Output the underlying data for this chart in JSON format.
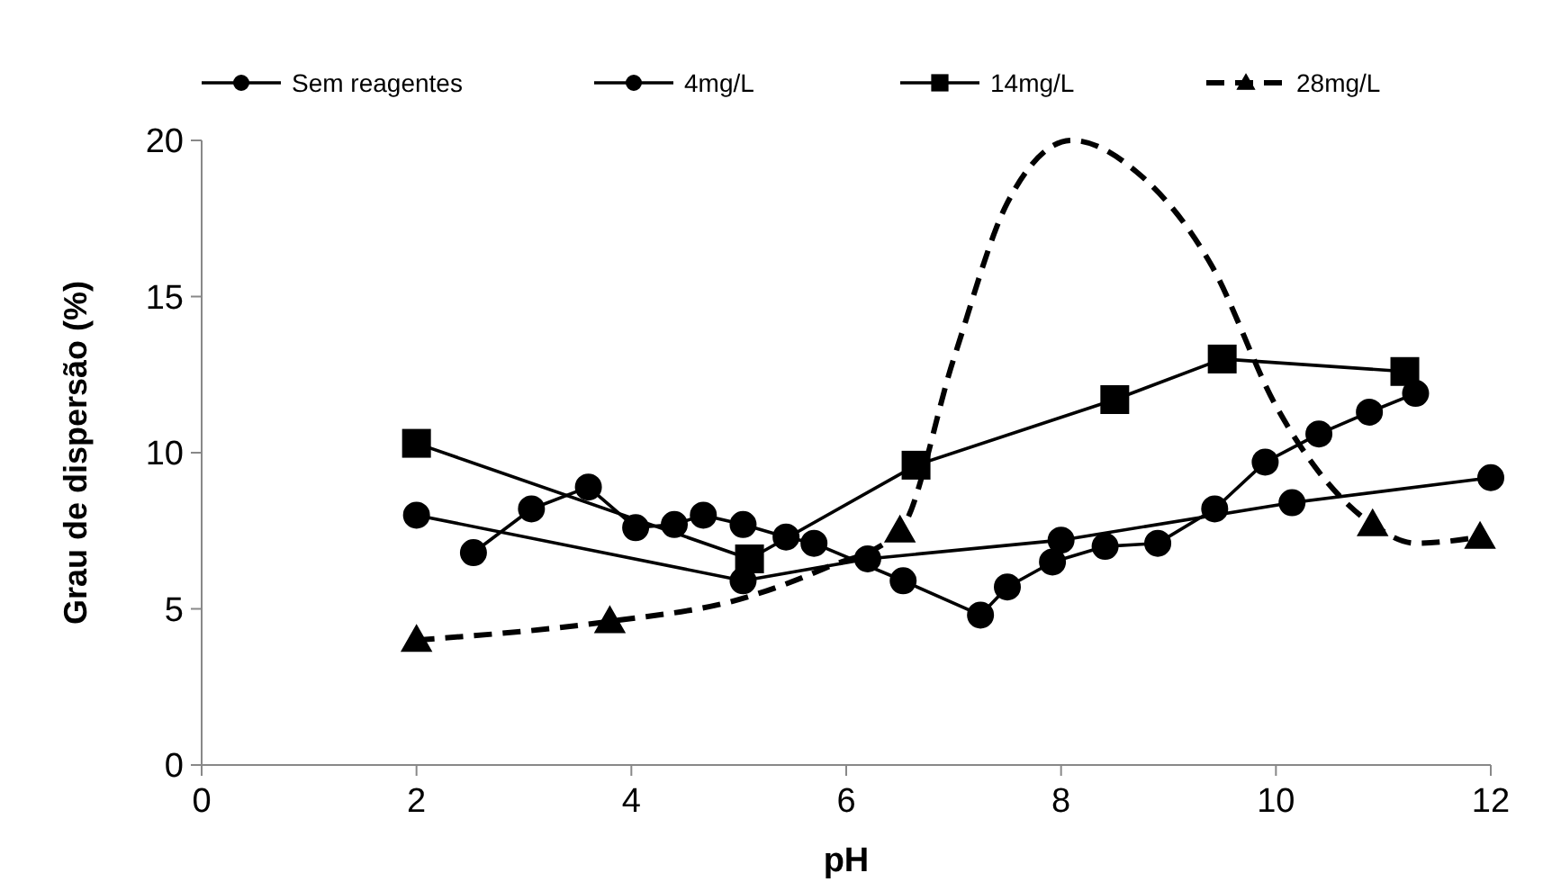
{
  "chart_data": {
    "type": "line",
    "xlabel": "pH",
    "ylabel": "Grau de dispersão (%)",
    "xlim": [
      0,
      12
    ],
    "ylim": [
      0,
      20
    ],
    "xticks": [
      0,
      2,
      4,
      6,
      8,
      10,
      12
    ],
    "yticks": [
      0,
      5,
      10,
      15,
      20
    ],
    "grid": false,
    "legend": "top",
    "series": [
      {
        "name": "Sem reagentes",
        "color": "#000000",
        "marker": "circle",
        "line_style": "solid",
        "x": [
          2.53,
          3.07,
          3.6,
          4.04,
          4.4,
          4.67,
          5.04,
          5.44,
          5.7,
          6.53,
          7.25,
          7.5,
          7.92,
          8.41,
          8.9,
          9.43,
          9.9,
          10.4,
          10.87,
          11.3
        ],
        "values": [
          6.8,
          8.2,
          8.9,
          7.6,
          7.7,
          8.0,
          7.7,
          7.3,
          7.1,
          5.9,
          4.8,
          5.7,
          6.5,
          7.0,
          7.1,
          8.2,
          9.7,
          10.6,
          11.3,
          11.9
        ]
      },
      {
        "name": "4mg/L",
        "color": "#000000",
        "marker": "circle",
        "line_style": "solid",
        "x": [
          2,
          5.04,
          6.2,
          8.0,
          10.15,
          12
        ],
        "values": [
          8.0,
          5.9,
          6.6,
          7.2,
          8.4,
          9.2
        ]
      },
      {
        "name": "14mg/L",
        "color": "#000000",
        "marker": "square",
        "line_style": "solid",
        "x": [
          2,
          5.1,
          6.65,
          8.5,
          9.5,
          11.2
        ],
        "values": [
          10.3,
          6.6,
          9.6,
          11.7,
          13.0,
          12.6
        ]
      },
      {
        "name": "28mg/L",
        "color": "#000000",
        "marker": "none",
        "line_style": "dashed",
        "x": [
          2,
          3.8,
          5,
          5.8,
          6.5,
          7,
          7.5,
          8.1,
          8.7,
          9.4,
          10,
          10.9,
          11.3,
          11.9
        ],
        "values": [
          4.0,
          4.6,
          5.3,
          6.3,
          7.5,
          13,
          18,
          20,
          19,
          16,
          11.5,
          7.7,
          7.1,
          7.3
        ]
      },
      {
        "type": "scatter",
        "color": "#000000",
        "marker": "triangle",
        "x": [
          2,
          3.8,
          6.5,
          10.9,
          11.9
        ],
        "values": [
          4.0,
          4.6,
          7.5,
          7.7,
          7.3
        ]
      }
    ]
  }
}
